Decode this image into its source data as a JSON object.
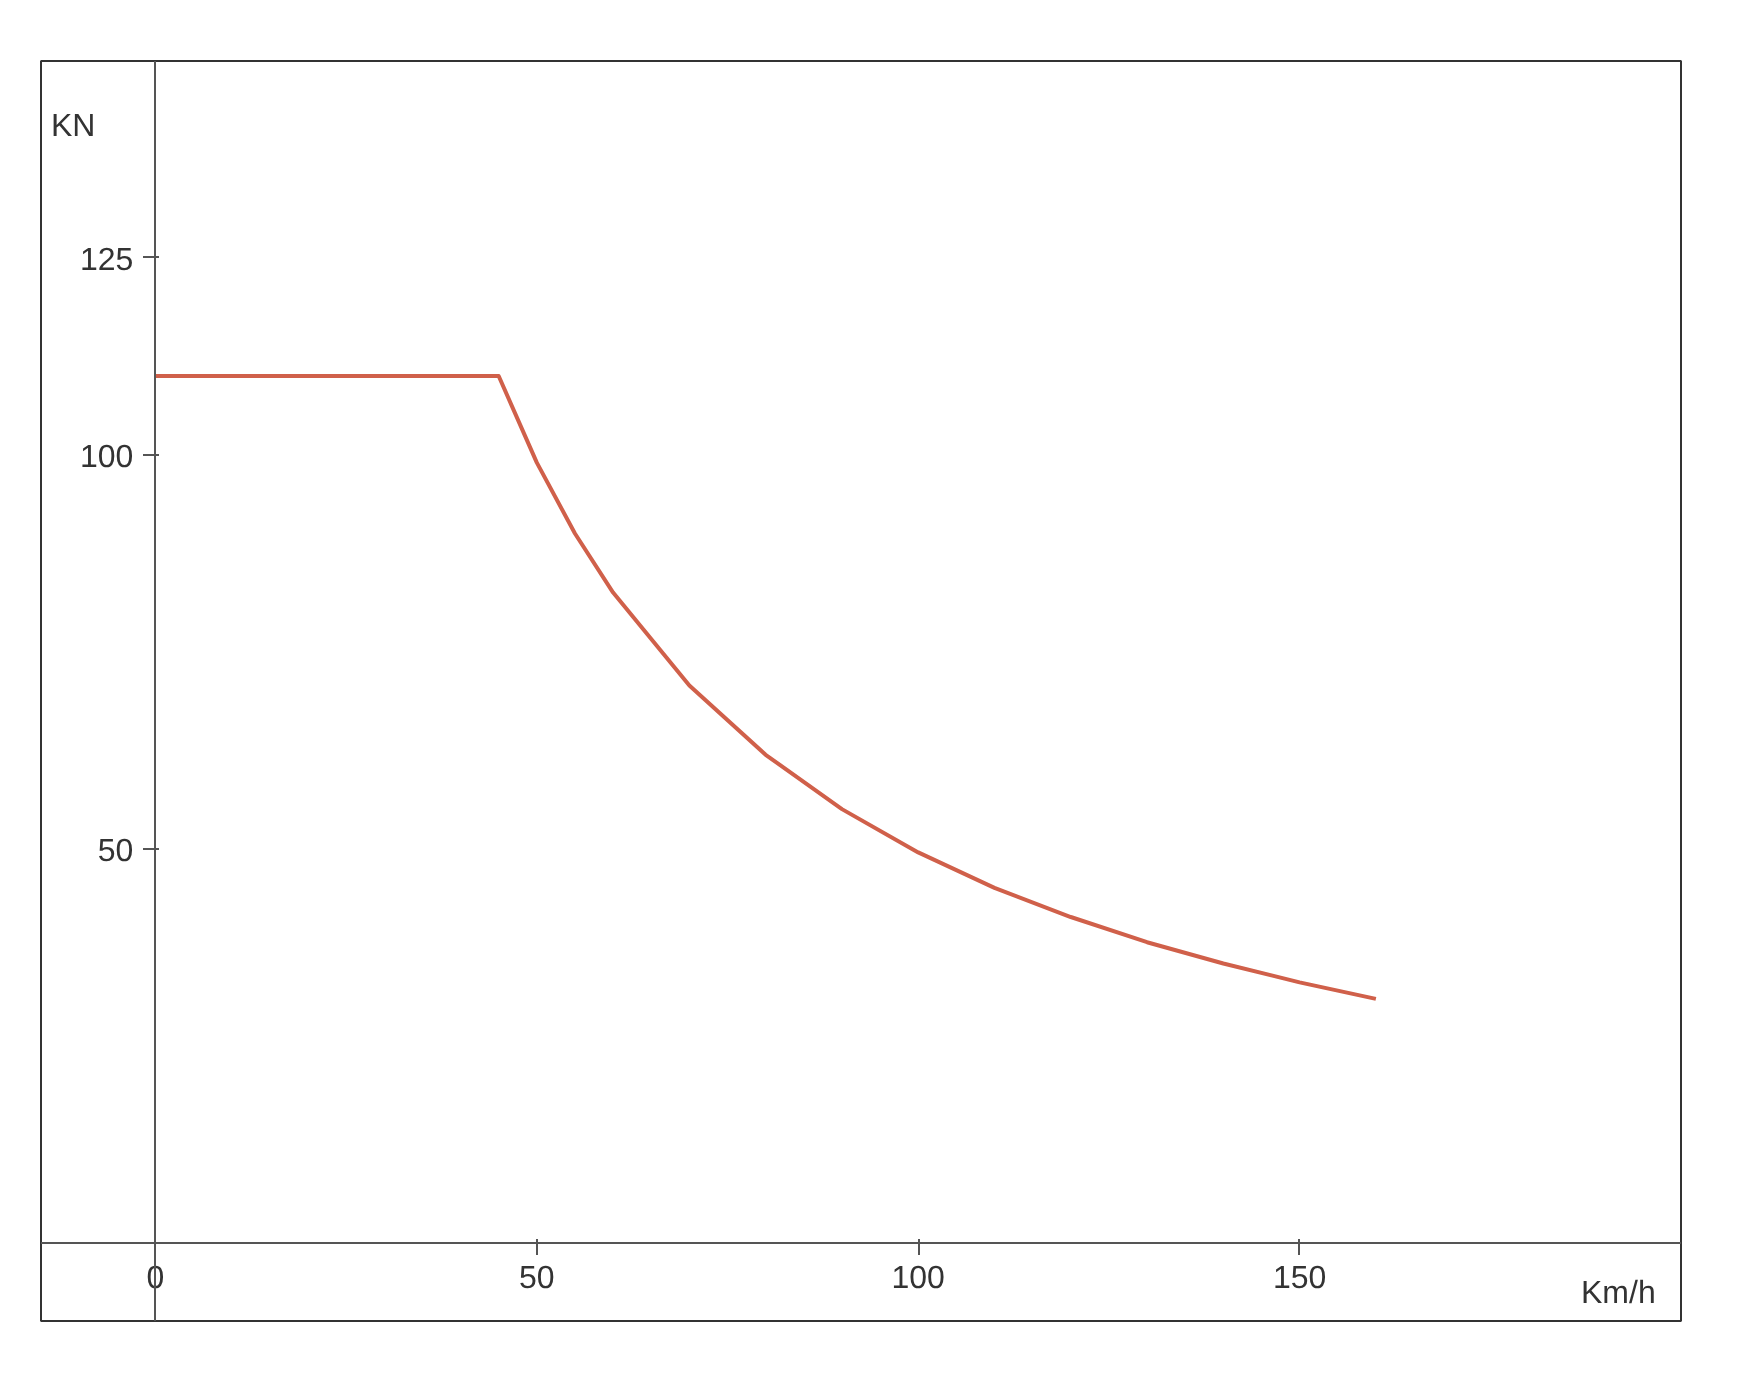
{
  "chart_data": {
    "type": "line",
    "xlabel": "Km/h",
    "ylabel": "KN",
    "x": [
      0,
      45,
      50,
      55,
      60,
      70,
      80,
      90,
      100,
      110,
      120,
      130,
      140,
      150,
      160
    ],
    "series": [
      {
        "color": "#d0604a",
        "values": [
          110,
          110,
          99,
          90,
          82.5,
          70.7,
          61.9,
          55,
          49.5,
          45,
          41.3,
          38.1,
          35.4,
          33,
          30.9
        ]
      }
    ],
    "xlim": [
      -15,
      200
    ],
    "ylim": [
      -10,
      150
    ],
    "xticks": [
      0,
      50,
      100,
      150
    ],
    "yticks": [
      50,
      100,
      125
    ],
    "grid": false,
    "marker": "none",
    "line_style": "solid"
  }
}
